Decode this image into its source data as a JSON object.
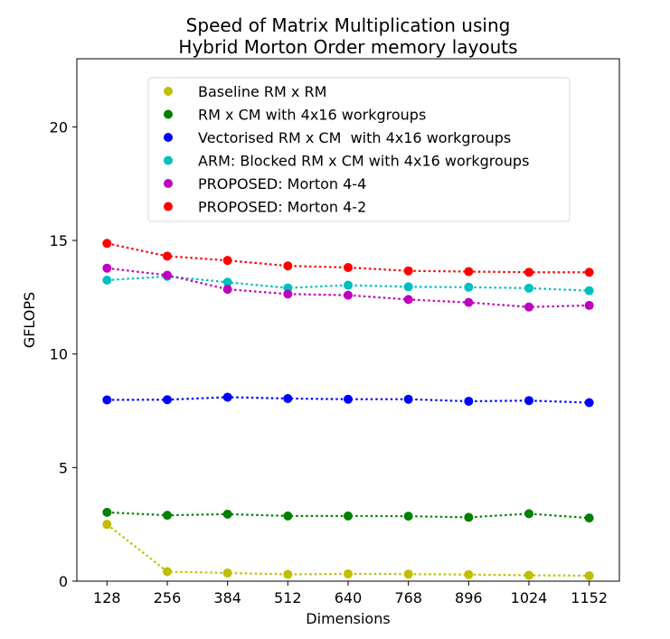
{
  "chart_data": {
    "type": "line",
    "title_lines": [
      "Speed of Matrix Multiplication using",
      "Hybrid Morton Order memory layouts"
    ],
    "xlabel": "Dimensions",
    "ylabel": "GFLOPS",
    "x": [
      128,
      256,
      384,
      512,
      640,
      768,
      896,
      1024,
      1152
    ],
    "x_tick_labels": [
      "128",
      "256",
      "384",
      "512",
      "640",
      "768",
      "896",
      "1024",
      "1152"
    ],
    "ylim": [
      0,
      23
    ],
    "y_ticks": [
      0,
      5,
      10,
      15,
      20
    ],
    "y_tick_labels": [
      "0",
      "5",
      "10",
      "15",
      "20"
    ],
    "grid": false,
    "legend_position": "upper-center",
    "series": [
      {
        "name": "Baseline RM x RM",
        "color": "#bfbf00",
        "values": [
          2.5,
          0.42,
          0.36,
          0.3,
          0.32,
          0.31,
          0.29,
          0.26,
          0.24
        ]
      },
      {
        "name": "RM x CM with 4x16 workgroups",
        "color": "#008000",
        "values": [
          3.03,
          2.9,
          2.95,
          2.87,
          2.87,
          2.86,
          2.81,
          2.97,
          2.78
        ]
      },
      {
        "name": "Vectorised RM x CM  with 4x16 workgroups",
        "color": "#0000ff",
        "values": [
          7.98,
          7.99,
          8.1,
          8.04,
          8.01,
          8.01,
          7.92,
          7.95,
          7.86
        ]
      },
      {
        "name": "ARM: Blocked RM x CM with 4x16 workgroups",
        "color": "#00bfbf",
        "values": [
          13.25,
          13.42,
          13.16,
          12.91,
          13.03,
          12.96,
          12.94,
          12.9,
          12.79
        ]
      },
      {
        "name": "PROPOSED: Morton 4-4",
        "color": "#bf00bf",
        "values": [
          13.78,
          13.47,
          12.85,
          12.64,
          12.59,
          12.4,
          12.27,
          12.07,
          12.14
        ]
      },
      {
        "name": "PROPOSED: Morton 4-2",
        "color": "#ff0000",
        "values": [
          14.87,
          14.31,
          14.12,
          13.88,
          13.81,
          13.66,
          13.63,
          13.6,
          13.6
        ]
      }
    ]
  }
}
